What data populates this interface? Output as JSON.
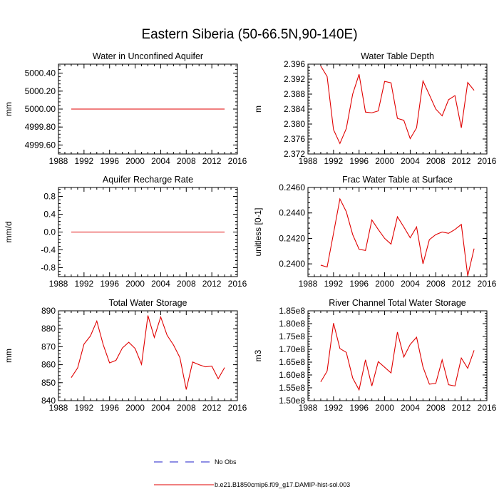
{
  "title": "Eastern Siberia (50-66.5N,90-140E)",
  "legend": {
    "entries": [
      {
        "label": "No Obs",
        "style": "dashed",
        "color": "#1c1cc8"
      },
      {
        "label": "b.e21.B1850cmip6.f09_g17.DAMIP-hist-sol.003",
        "style": "solid",
        "color": "#e00000"
      }
    ]
  },
  "chart_data": [
    {
      "type": "line",
      "title": "Water in Unconfined Aquifer",
      "ylabel": "mm",
      "xlim": [
        1988,
        2016
      ],
      "ylim": [
        4999.5,
        5000.5
      ],
      "yticks": [
        4999.6,
        4999.8,
        5000.0,
        5000.2,
        5000.4
      ],
      "ytick_labels": [
        "4999.60",
        "4999.80",
        "5000.00",
        "5000.20",
        "5000.40"
      ],
      "xticks": [
        1988,
        1992,
        1996,
        2000,
        2004,
        2008,
        2012,
        2016
      ],
      "xtick_labels": [
        "1988",
        "1992",
        "1996",
        "2000",
        "2004",
        "2008",
        "2012",
        "2016"
      ],
      "color": "#e00000",
      "x": [
        1990,
        1991,
        1992,
        1993,
        1994,
        1995,
        1996,
        1997,
        1998,
        1999,
        2000,
        2001,
        2002,
        2003,
        2004,
        2005,
        2006,
        2007,
        2008,
        2009,
        2010,
        2011,
        2012,
        2013,
        2014
      ],
      "y": [
        5000,
        5000,
        5000,
        5000,
        5000,
        5000,
        5000,
        5000,
        5000,
        5000,
        5000,
        5000,
        5000,
        5000,
        5000,
        5000,
        5000,
        5000,
        5000,
        5000,
        5000,
        5000,
        5000,
        5000,
        5000
      ]
    },
    {
      "type": "line",
      "title": "Water Table Depth",
      "ylabel": "m",
      "xlim": [
        1988,
        2016
      ],
      "ylim": [
        2.372,
        2.396
      ],
      "yticks": [
        2.372,
        2.376,
        2.38,
        2.384,
        2.388,
        2.392,
        2.396
      ],
      "ytick_labels": [
        "2.372",
        "2.376",
        "2.380",
        "2.384",
        "2.388",
        "2.392",
        "2.396"
      ],
      "xticks": [
        1988,
        1992,
        1996,
        2000,
        2004,
        2008,
        2012,
        2016
      ],
      "xtick_labels": [
        "1988",
        "1992",
        "1996",
        "2000",
        "2004",
        "2008",
        "2012",
        "2016"
      ],
      "color": "#e00000",
      "x": [
        1990,
        1991,
        1992,
        1993,
        1994,
        1995,
        1996,
        1997,
        1998,
        1999,
        2000,
        2001,
        2002,
        2003,
        2004,
        2005,
        2006,
        2007,
        2008,
        2009,
        2010,
        2011,
        2012,
        2013,
        2014
      ],
      "y": [
        2.3955,
        2.3927,
        2.3785,
        2.3748,
        2.3788,
        2.388,
        2.3933,
        2.3832,
        2.383,
        2.3835,
        2.3914,
        2.391,
        2.3815,
        2.381,
        2.3761,
        2.379,
        2.3915,
        2.3878,
        2.384,
        2.3822,
        2.3865,
        2.3876,
        2.379,
        2.3911,
        2.389
      ]
    },
    {
      "type": "line",
      "title": "Aquifer Recharge Rate",
      "ylabel": "mm/d",
      "xlim": [
        1988,
        2016
      ],
      "ylim": [
        -1.0,
        1.0
      ],
      "yticks": [
        -0.8,
        -0.4,
        0.0,
        0.4,
        0.8
      ],
      "ytick_labels": [
        "-0.8",
        "-0.4",
        "0.0",
        "0.4",
        "0.8"
      ],
      "xticks": [
        1988,
        1992,
        1996,
        2000,
        2004,
        2008,
        2012,
        2016
      ],
      "xtick_labels": [
        "1988",
        "1992",
        "1996",
        "2000",
        "2004",
        "2008",
        "2012",
        "2016"
      ],
      "color": "#e00000",
      "x": [
        1990,
        1991,
        1992,
        1993,
        1994,
        1995,
        1996,
        1997,
        1998,
        1999,
        2000,
        2001,
        2002,
        2003,
        2004,
        2005,
        2006,
        2007,
        2008,
        2009,
        2010,
        2011,
        2012,
        2013,
        2014
      ],
      "y": [
        0,
        0,
        0,
        0,
        0,
        0,
        0,
        0,
        0,
        0,
        0,
        0,
        0,
        0,
        0,
        0,
        0,
        0,
        0,
        0,
        0,
        0,
        0,
        0,
        0
      ]
    },
    {
      "type": "line",
      "title": "Frac Water Table at Surface",
      "ylabel": "unitless [0-1]",
      "xlim": [
        1988,
        2016
      ],
      "ylim": [
        0.239,
        0.246
      ],
      "yticks": [
        0.24,
        0.242,
        0.244,
        0.246
      ],
      "ytick_labels": [
        "0.2400",
        "0.2420",
        "0.2440",
        "0.2460"
      ],
      "xticks": [
        1988,
        1992,
        1996,
        2000,
        2004,
        2008,
        2012,
        2016
      ],
      "xtick_labels": [
        "1988",
        "1992",
        "1996",
        "2000",
        "2004",
        "2008",
        "2012",
        "2016"
      ],
      "color": "#e00000",
      "x": [
        1990,
        1991,
        1992,
        1993,
        1994,
        1995,
        1996,
        1997,
        1998,
        1999,
        2000,
        2001,
        2002,
        2003,
        2004,
        2005,
        2006,
        2007,
        2008,
        2009,
        2010,
        2011,
        2012,
        2013,
        2014
      ],
      "y": [
        0.2399,
        0.23975,
        0.2424,
        0.2451,
        0.2441,
        0.2423,
        0.24115,
        0.24105,
        0.24345,
        0.2427,
        0.242,
        0.24155,
        0.2437,
        0.2429,
        0.24205,
        0.2429,
        0.24,
        0.2419,
        0.2423,
        0.2425,
        0.2424,
        0.2427,
        0.2431,
        0.23905,
        0.2412
      ]
    },
    {
      "type": "line",
      "title": "Total Water Storage",
      "ylabel": "mm",
      "xlim": [
        1988,
        2016
      ],
      "ylim": [
        840,
        890
      ],
      "yticks": [
        840,
        850,
        860,
        870,
        880,
        890
      ],
      "ytick_labels": [
        "840",
        "850",
        "860",
        "870",
        "880",
        "890"
      ],
      "xticks": [
        1988,
        1992,
        1996,
        2000,
        2004,
        2008,
        2012,
        2016
      ],
      "xtick_labels": [
        "1988",
        "1992",
        "1996",
        "2000",
        "2004",
        "2008",
        "2012",
        "2016"
      ],
      "color": "#e00000",
      "x": [
        1990,
        1991,
        1992,
        1993,
        1994,
        1995,
        1996,
        1997,
        1998,
        1999,
        2000,
        2001,
        2002,
        2003,
        2004,
        2005,
        2006,
        2007,
        2008,
        2009,
        2010,
        2011,
        2012,
        2013,
        2014
      ],
      "y": [
        852.8,
        858.2,
        871.5,
        876.0,
        884.3,
        871.2,
        861.0,
        862.4,
        869.3,
        872.5,
        869.0,
        860.2,
        887.4,
        875.2,
        886.6,
        876.4,
        871.0,
        864.0,
        846.2,
        861.5,
        860.0,
        858.8,
        859.2,
        852.2,
        858.4
      ]
    },
    {
      "type": "line",
      "title": "River Channel Total Water Storage",
      "ylabel": "m3",
      "xlim": [
        1988,
        2016
      ],
      "ylim": [
        150000000,
        185000000
      ],
      "yticks": [
        150000000,
        155000000,
        160000000,
        165000000,
        170000000,
        175000000,
        180000000,
        185000000
      ],
      "ytick_labels": [
        "1.50e8",
        "1.55e8",
        "1.60e8",
        "1.65e8",
        "1.70e8",
        "1.75e8",
        "1.80e8",
        "1.85e8"
      ],
      "xticks": [
        1988,
        1992,
        1996,
        2000,
        2004,
        2008,
        2012,
        2016
      ],
      "xtick_labels": [
        "1988",
        "1992",
        "1996",
        "2000",
        "2004",
        "2008",
        "2012",
        "2016"
      ],
      "color": "#e00000",
      "x": [
        1990,
        1991,
        1992,
        1993,
        1994,
        1995,
        1996,
        1997,
        1998,
        1999,
        2000,
        2001,
        2002,
        2003,
        2004,
        2005,
        2006,
        2007,
        2008,
        2009,
        2010,
        2011,
        2012,
        2013,
        2014
      ],
      "y": [
        157300000,
        161500000,
        180200000,
        170300000,
        168800000,
        158800000,
        154200000,
        165900000,
        155700000,
        165200000,
        163000000,
        160800000,
        176700000,
        167000000,
        171900000,
        174700000,
        163100000,
        156400000,
        156700000,
        165900000,
        156200000,
        155700000,
        166600000,
        162600000,
        169600000
      ]
    }
  ]
}
